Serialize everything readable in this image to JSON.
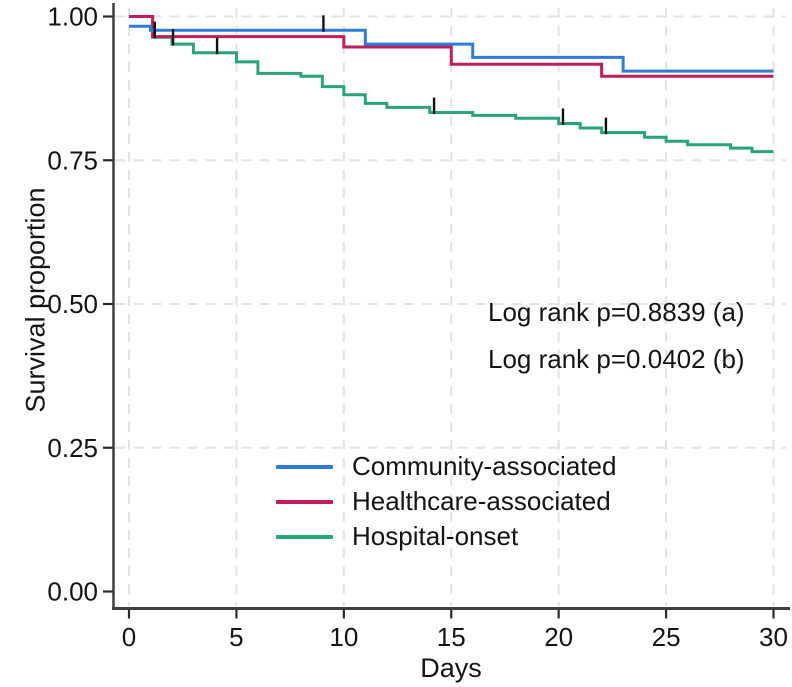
{
  "figure": {
    "background": "#ffffff",
    "text_color": "#141414"
  },
  "chart_data": {
    "type": "line",
    "subtype": "kaplan-meier-step",
    "title": "",
    "xlabel": "Days",
    "ylabel": "Survival proportion",
    "xlim": [
      0,
      30
    ],
    "ylim": [
      0.0,
      1.0
    ],
    "x_ticks": [
      {
        "value": 0,
        "label": "0"
      },
      {
        "value": 5,
        "label": "5"
      },
      {
        "value": 10,
        "label": "10"
      },
      {
        "value": 15,
        "label": "15"
      },
      {
        "value": 20,
        "label": "20"
      },
      {
        "value": 25,
        "label": "25"
      },
      {
        "value": 30,
        "label": "30"
      }
    ],
    "y_ticks": [
      {
        "value": 0.0,
        "label": "0.00"
      },
      {
        "value": 0.25,
        "label": "0.25"
      },
      {
        "value": 0.5,
        "label": "0.50"
      },
      {
        "value": 0.75,
        "label": "0.75"
      },
      {
        "value": 1.0,
        "label": "1.00"
      }
    ],
    "grid": {
      "show": true,
      "style": "dashed",
      "color": "#e3e3e3",
      "axes": "both"
    },
    "axis_color": "#3f3f3f",
    "tick_color": "#2a2a2a",
    "censor_mark_color": "#111111",
    "annotations": [
      {
        "text": "Log rank p=0.8839 (a)"
      },
      {
        "text": "Log rank p=0.0402 (b)"
      }
    ],
    "legend": {
      "position": "inside-bottom-left"
    },
    "series": [
      {
        "name": "Community-associated",
        "color": "#2d7cd6",
        "points": [
          [
            0,
            0.983
          ],
          [
            1,
            0.976
          ],
          [
            11,
            0.952
          ],
          [
            16,
            0.929
          ],
          [
            23,
            0.905
          ],
          [
            30,
            0.905
          ]
        ],
        "censor_marks": [
          {
            "day": 9.05,
            "value": 0.976
          }
        ]
      },
      {
        "name": "Healthcare-associated",
        "color": "#c11d5e",
        "points": [
          [
            0,
            1.0
          ],
          [
            1.1,
            0.965
          ],
          [
            10,
            0.947
          ],
          [
            15,
            0.917
          ],
          [
            22,
            0.896
          ],
          [
            30,
            0.896
          ]
        ],
        "censor_marks": [
          {
            "day": 1.2,
            "value": 0.965
          }
        ]
      },
      {
        "name": "Hospital-onset",
        "color": "#27a578",
        "points": [
          [
            0,
            1.0
          ],
          [
            1.1,
            0.964
          ],
          [
            2,
            0.952
          ],
          [
            3,
            0.937
          ],
          [
            5,
            0.921
          ],
          [
            6,
            0.901
          ],
          [
            8,
            0.896
          ],
          [
            9,
            0.878
          ],
          [
            10,
            0.864
          ],
          [
            11,
            0.849
          ],
          [
            12,
            0.842
          ],
          [
            14,
            0.833
          ],
          [
            16,
            0.828
          ],
          [
            18,
            0.823
          ],
          [
            20,
            0.814
          ],
          [
            21,
            0.806
          ],
          [
            22,
            0.798
          ],
          [
            24,
            0.79
          ],
          [
            25,
            0.783
          ],
          [
            26,
            0.777
          ],
          [
            28,
            0.771
          ],
          [
            29,
            0.765
          ],
          [
            30,
            0.765
          ]
        ],
        "censor_marks": [
          {
            "day": 2.05,
            "value": 0.952
          },
          {
            "day": 4.1,
            "value": 0.937
          },
          {
            "day": 14.2,
            "value": 0.833
          },
          {
            "day": 20.2,
            "value": 0.814
          },
          {
            "day": 22.2,
            "value": 0.798
          }
        ]
      }
    ]
  }
}
